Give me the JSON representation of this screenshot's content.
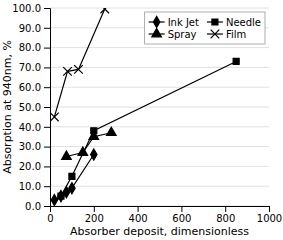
{
  "chart_data": {
    "type": "line",
    "x_label": "Absorber deposit, dimensionless",
    "y_label": "Absorption at 940nm, %",
    "series": [
      {
        "name": "Ink Jet",
        "color": "#000000",
        "marker": "diamond",
        "x": [
          20,
          50,
          75,
          100,
          200
        ],
        "values": [
          3.0,
          5.0,
          7.0,
          9.0,
          26.0
        ]
      },
      {
        "name": "Needle",
        "color": "#000000",
        "marker": "square",
        "x": [
          50,
          100,
          200,
          850
        ],
        "values": [
          5.0,
          15.0,
          38.0,
          73.0
        ]
      },
      {
        "name": "Spray",
        "color": "#000000",
        "marker": "triangle",
        "x": [
          75,
          150,
          200,
          280
        ],
        "values": [
          25.0,
          27.0,
          35.0,
          37.0
        ]
      },
      {
        "name": "Film",
        "color": "#000000",
        "marker": "x",
        "x": [
          20,
          80,
          130,
          250
        ],
        "values": [
          45.0,
          68.0,
          69.0,
          99.5
        ]
      }
    ],
    "xlim": [
      0,
      1000
    ],
    "ylim": [
      0.0,
      100.0
    ],
    "xticks": [
      0,
      200,
      400,
      600,
      800,
      1000
    ],
    "yticks": [
      {
        "value": 0.0,
        "label": "0.0"
      },
      {
        "value": 10.0,
        "label": "10.0"
      },
      {
        "value": 20.0,
        "label": "20.0"
      },
      {
        "value": 30.0,
        "label": "30.0"
      },
      {
        "value": 40.0,
        "label": "40.0"
      },
      {
        "value": 50.0,
        "label": "50.0"
      },
      {
        "value": 60.0,
        "label": "60.0"
      },
      {
        "value": 70.0,
        "label": "70.0"
      },
      {
        "value": 80.0,
        "label": "80.0"
      },
      {
        "value": 90.0,
        "label": "90.0"
      },
      {
        "value": 100.0,
        "label": "100.0"
      }
    ],
    "grid": true,
    "legend": "upper right"
  }
}
